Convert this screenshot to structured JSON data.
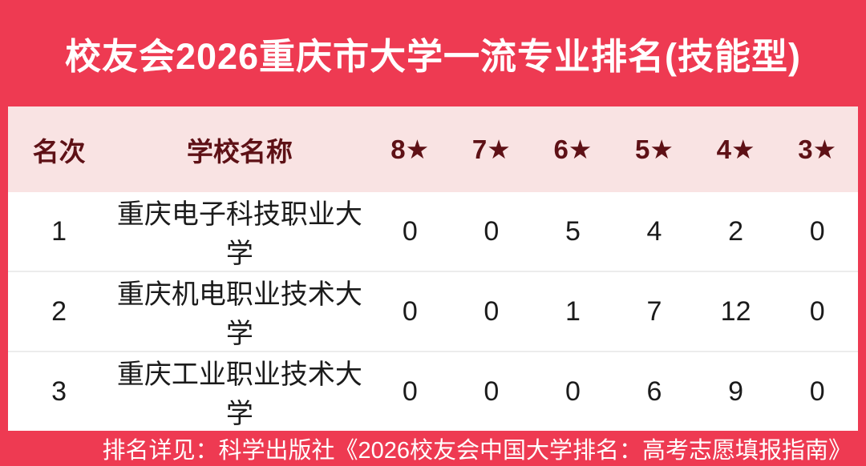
{
  "title": "校友会2026重庆市大学一流专业排名(技能型)",
  "colors": {
    "brand_red": "#EE3A52",
    "header_bg": "#F9E3E3",
    "header_text": "#5E1116",
    "body_text": "#1B1B1B",
    "row_divider": "#ECECEC",
    "title_text": "#FFFFFF"
  },
  "table": {
    "headers": [
      "名次",
      "学校名称",
      "8★",
      "7★",
      "6★",
      "5★",
      "4★",
      "3★"
    ],
    "rows": [
      {
        "rank": "1",
        "school": "重庆电子科技职业大学",
        "stars": [
          "0",
          "0",
          "5",
          "4",
          "2",
          "0"
        ]
      },
      {
        "rank": "2",
        "school": "重庆机电职业技术大学",
        "stars": [
          "0",
          "0",
          "1",
          "7",
          "12",
          "0"
        ]
      },
      {
        "rank": "3",
        "school": "重庆工业职业技术大学",
        "stars": [
          "0",
          "0",
          "0",
          "6",
          "9",
          "0"
        ]
      }
    ]
  },
  "footer": {
    "note": "排名详见：科学出版社《2026校友会中国大学排名：高考志愿填报指南》"
  },
  "chart_data": {
    "type": "table",
    "title": "校友会2026重庆市大学一流专业排名(技能型)",
    "columns": [
      "名次",
      "学校名称",
      "8★",
      "7★",
      "6★",
      "5★",
      "4★",
      "3★"
    ],
    "rows": [
      [
        1,
        "重庆电子科技职业大学",
        0,
        0,
        5,
        4,
        2,
        0
      ],
      [
        2,
        "重庆机电职业技术大学",
        0,
        0,
        1,
        7,
        12,
        0
      ],
      [
        3,
        "重庆工业职业技术大学",
        0,
        0,
        0,
        6,
        9,
        0
      ]
    ],
    "footnote": "排名详见：科学出版社《2026校友会中国大学排名：高考志愿填报指南》"
  }
}
